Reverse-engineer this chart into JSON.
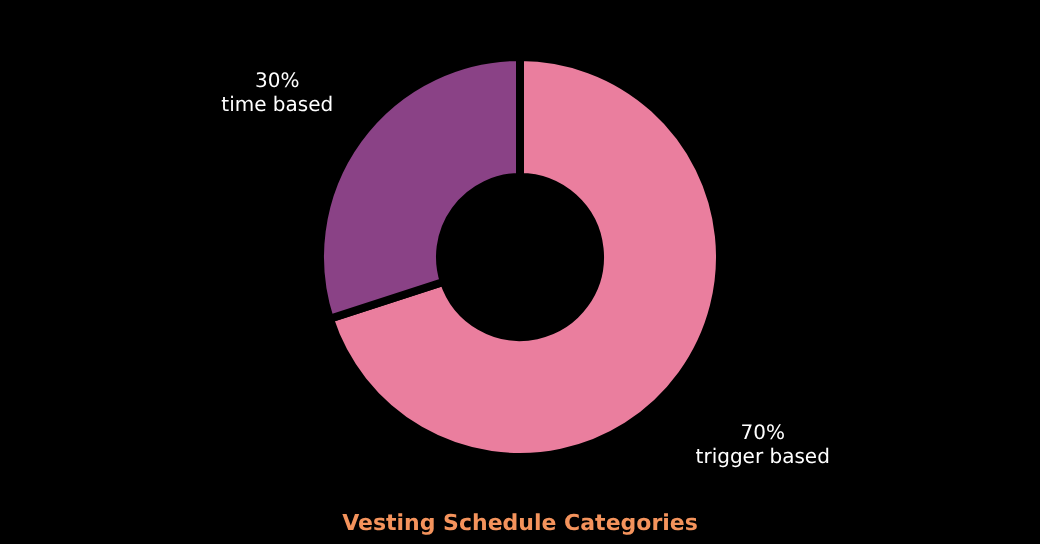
{
  "chart_data": {
    "type": "donut",
    "title": "Vesting Schedule Categories",
    "categories": [
      "trigger based",
      "time based"
    ],
    "values": [
      70,
      30
    ],
    "colors": [
      "#ea7e9e",
      "#8a4286"
    ],
    "value_labels": [
      "70%",
      "30%"
    ],
    "legend": false
  }
}
